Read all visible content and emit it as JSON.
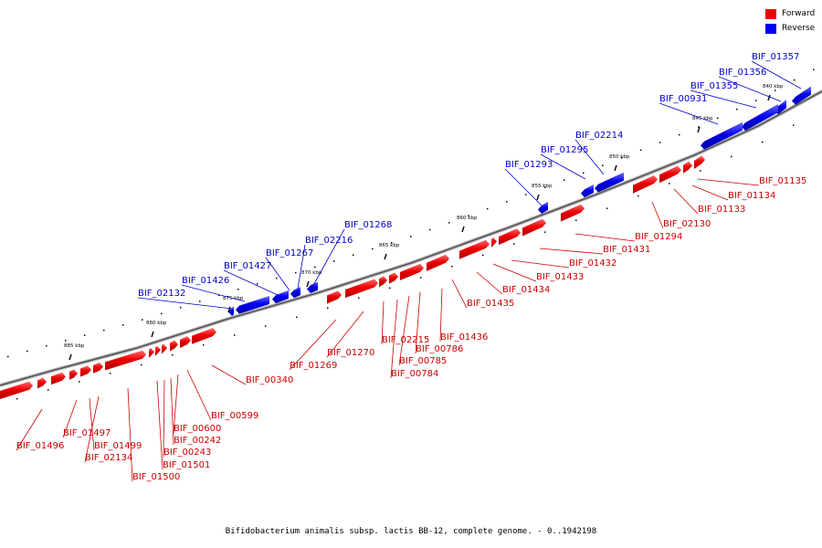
{
  "caption": "Bifidobacterium animalis subsp. lactis BB-12, complete genome. - 0..1942198",
  "legend": {
    "forward_label": "Forward",
    "reverse_label": "Reverse",
    "forward_color": "#ee0000",
    "reverse_color": "#0000ee"
  },
  "scale_marks": [
    {
      "label": "840 kbp"
    },
    {
      "label": "845 kbp"
    },
    {
      "label": "850 kbp"
    },
    {
      "label": "855 kbp"
    },
    {
      "label": "860 kbp"
    },
    {
      "label": "865 kbp"
    },
    {
      "label": "870 kbp"
    },
    {
      "label": "875 kbp"
    },
    {
      "label": "880 kbp"
    },
    {
      "label": "885 kbp"
    }
  ],
  "reverse_genes": [
    {
      "label": "BIF_01357"
    },
    {
      "label": "BIF_01356"
    },
    {
      "label": "BIF_01355"
    },
    {
      "label": "BIF_00931"
    },
    {
      "label": "BIF_02214"
    },
    {
      "label": "BIF_01295"
    },
    {
      "label": "BIF_01293"
    },
    {
      "label": "BIF_01268"
    },
    {
      "label": "BIF_02216"
    },
    {
      "label": "BIF_01267"
    },
    {
      "label": "BIF_01427"
    },
    {
      "label": "BIF_01426"
    },
    {
      "label": "BIF_02132"
    }
  ],
  "forward_genes": [
    {
      "label": "BIF_01135"
    },
    {
      "label": "BIF_01134"
    },
    {
      "label": "BIF_01133"
    },
    {
      "label": "BIF_02130"
    },
    {
      "label": "BIF_01294"
    },
    {
      "label": "BIF_01431"
    },
    {
      "label": "BIF_01432"
    },
    {
      "label": "BIF_01433"
    },
    {
      "label": "BIF_01434"
    },
    {
      "label": "BIF_01435"
    },
    {
      "label": "BIF_01436"
    },
    {
      "label": "BIF_00786"
    },
    {
      "label": "BIF_00785"
    },
    {
      "label": "BIF_00784"
    },
    {
      "label": "BIF_02215"
    },
    {
      "label": "BIF_01270"
    },
    {
      "label": "BIF_01269"
    },
    {
      "label": "BIF_00340"
    },
    {
      "label": "BIF_00599"
    },
    {
      "label": "BIF_00600"
    },
    {
      "label": "BIF_00242"
    },
    {
      "label": "BIF_00243"
    },
    {
      "label": "BIF_01501"
    },
    {
      "label": "BIF_01500"
    },
    {
      "label": "BIF_02134"
    },
    {
      "label": "BIF_01499"
    },
    {
      "label": "BIF_01497"
    },
    {
      "label": "BIF_01496"
    }
  ]
}
